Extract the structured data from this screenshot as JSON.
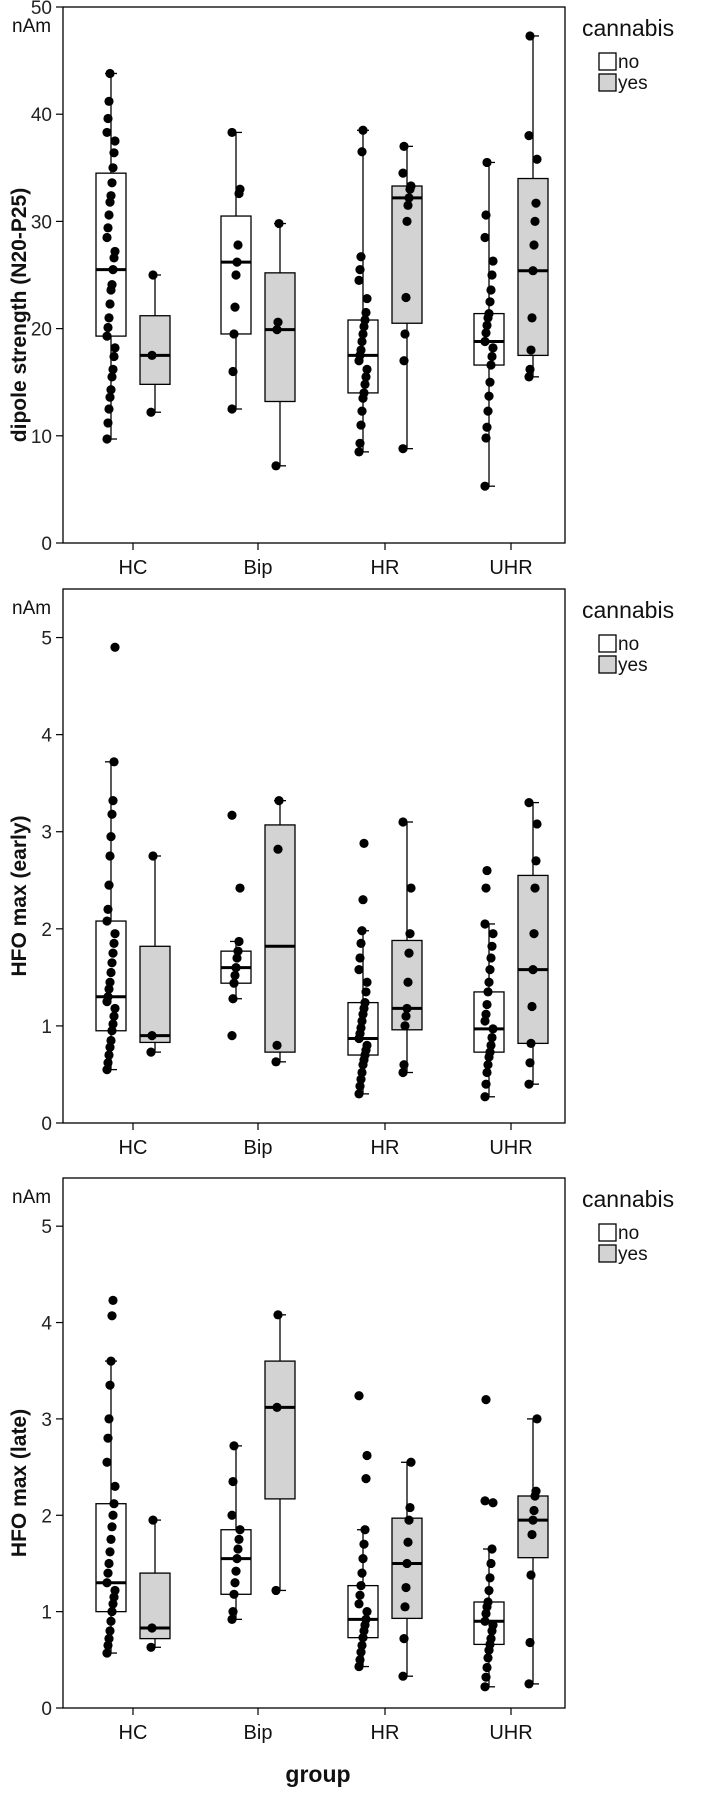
{
  "chart_data": [
    {
      "type": "box",
      "ylabel": "dipole strength (N20-P25)",
      "unit": "nAm",
      "xlabel": "",
      "ylim": [
        0,
        50
      ],
      "yticks": [
        0,
        10,
        20,
        30,
        40,
        50
      ],
      "categories": [
        "HC",
        "Bip",
        "HR",
        "UHR"
      ],
      "legend": {
        "title": "cannabis",
        "items": [
          "no",
          "yes"
        ],
        "placement": "right"
      },
      "colors": {
        "no": "#ffffff",
        "yes": "#d3d3d3"
      },
      "series": [
        {
          "name": "no",
          "boxes": [
            {
              "min": 9.7,
              "q1": 19.3,
              "median": 25.5,
              "q3": 34.5,
              "max": 43.8,
              "points": [
                9.7,
                11.2,
                12.5,
                13.6,
                14.3,
                15.5,
                16.2,
                17.4,
                18.2,
                19.3,
                20.1,
                21.0,
                22.3,
                23.6,
                24.1,
                25.5,
                26.6,
                27.2,
                28.5,
                29.4,
                30.6,
                31.8,
                32.4,
                33.6,
                35.0,
                36.4,
                37.5,
                38.3,
                39.6,
                41.2,
                43.8
              ]
            },
            {
              "min": 12.5,
              "q1": 19.5,
              "median": 26.2,
              "q3": 30.5,
              "max": 38.3,
              "points": [
                12.5,
                16.0,
                19.5,
                22.0,
                25.0,
                26.2,
                27.8,
                32.6,
                33.0,
                38.3
              ]
            },
            {
              "min": 8.5,
              "q1": 14.0,
              "median": 17.5,
              "q3": 20.8,
              "max": 38.5,
              "points": [
                8.5,
                9.3,
                11.0,
                12.3,
                13.5,
                14.0,
                14.8,
                15.5,
                16.2,
                17.0,
                17.5,
                18.0,
                18.8,
                19.5,
                20.2,
                20.8,
                21.5,
                22.8,
                24.5,
                25.5,
                26.7,
                36.5,
                38.5
              ]
            },
            {
              "min": 5.3,
              "q1": 16.6,
              "median": 18.8,
              "q3": 21.4,
              "max": 35.5,
              "points": [
                5.3,
                9.8,
                10.8,
                12.3,
                13.7,
                15.0,
                16.6,
                17.4,
                18.2,
                18.8,
                19.6,
                20.3,
                21.0,
                21.4,
                22.5,
                23.6,
                25.0,
                26.3,
                28.5,
                30.6,
                35.5
              ]
            }
          ]
        },
        {
          "name": "yes",
          "boxes": [
            {
              "min": 12.2,
              "q1": 14.8,
              "median": 17.5,
              "q3": 21.2,
              "max": 25.0,
              "points": [
                12.2,
                17.5,
                25.0
              ]
            },
            {
              "min": 7.2,
              "q1": 13.2,
              "median": 19.9,
              "q3": 25.2,
              "max": 29.8,
              "points": [
                7.2,
                19.9,
                20.6,
                29.8
              ]
            },
            {
              "min": 8.8,
              "q1": 20.5,
              "median": 32.2,
              "q3": 33.3,
              "max": 37.0,
              "points": [
                8.8,
                17.0,
                19.5,
                22.9,
                30.0,
                31.5,
                32.2,
                33.0,
                33.3,
                34.5,
                37.0
              ]
            },
            {
              "min": 15.5,
              "q1": 17.5,
              "median": 25.4,
              "q3": 34.0,
              "max": 47.3,
              "points": [
                15.5,
                16.2,
                18.0,
                21.0,
                25.4,
                27.8,
                30.0,
                31.7,
                35.8,
                38.0,
                47.3
              ]
            }
          ]
        }
      ]
    },
    {
      "type": "box",
      "ylabel": "HFO max (early)",
      "unit": "nAm",
      "xlabel": "",
      "ylim": [
        0,
        5.5
      ],
      "yticks": [
        0,
        1,
        2,
        3,
        4,
        5
      ],
      "categories": [
        "HC",
        "Bip",
        "HR",
        "UHR"
      ],
      "legend": {
        "title": "cannabis",
        "items": [
          "no",
          "yes"
        ],
        "placement": "right"
      },
      "colors": {
        "no": "#ffffff",
        "yes": "#d3d3d3"
      },
      "series": [
        {
          "name": "no",
          "boxes": [
            {
              "min": 0.55,
              "q1": 0.95,
              "median": 1.3,
              "q3": 2.08,
              "max": 3.72,
              "points": [
                0.55,
                0.62,
                0.7,
                0.78,
                0.85,
                0.95,
                1.02,
                1.1,
                1.18,
                1.25,
                1.3,
                1.38,
                1.45,
                1.55,
                1.65,
                1.75,
                1.85,
                1.95,
                2.08,
                2.2,
                2.45,
                2.75,
                2.95,
                3.18,
                3.32,
                3.72,
                4.9
              ]
            },
            {
              "min": 1.28,
              "q1": 1.44,
              "median": 1.6,
              "q3": 1.77,
              "max": 1.87,
              "points": [
                0.9,
                1.28,
                1.44,
                1.52,
                1.6,
                1.7,
                1.77,
                1.87,
                2.42,
                3.17
              ]
            },
            {
              "min": 0.3,
              "q1": 0.7,
              "median": 0.87,
              "q3": 1.24,
              "max": 1.98,
              "points": [
                0.3,
                0.38,
                0.45,
                0.52,
                0.6,
                0.65,
                0.7,
                0.75,
                0.8,
                0.87,
                0.92,
                0.98,
                1.05,
                1.12,
                1.18,
                1.24,
                1.35,
                1.45,
                1.58,
                1.7,
                1.85,
                1.98,
                2.3,
                2.88
              ]
            },
            {
              "min": 0.27,
              "q1": 0.73,
              "median": 0.97,
              "q3": 1.35,
              "max": 2.05,
              "points": [
                0.27,
                0.4,
                0.52,
                0.6,
                0.68,
                0.73,
                0.8,
                0.88,
                0.97,
                1.05,
                1.12,
                1.22,
                1.35,
                1.45,
                1.58,
                1.7,
                1.82,
                1.95,
                2.05,
                2.42,
                2.6
              ]
            }
          ]
        },
        {
          "name": "yes",
          "boxes": [
            {
              "min": 0.73,
              "q1": 0.83,
              "median": 0.9,
              "q3": 1.82,
              "max": 2.75,
              "points": [
                0.73,
                0.9,
                2.75
              ]
            },
            {
              "min": 0.63,
              "q1": 0.73,
              "median": 1.82,
              "q3": 3.07,
              "max": 3.32,
              "points": [
                0.63,
                0.8,
                2.82,
                3.32
              ]
            },
            {
              "min": 0.52,
              "q1": 0.96,
              "median": 1.18,
              "q3": 1.88,
              "max": 3.1,
              "points": [
                0.52,
                0.6,
                1.0,
                1.1,
                1.18,
                1.45,
                1.75,
                1.95,
                2.42,
                3.1
              ]
            },
            {
              "min": 0.4,
              "q1": 0.82,
              "median": 1.58,
              "q3": 2.55,
              "max": 3.3,
              "points": [
                0.4,
                0.62,
                0.82,
                1.2,
                1.58,
                1.95,
                2.42,
                2.7,
                3.08,
                3.3
              ]
            }
          ]
        }
      ]
    },
    {
      "type": "box",
      "ylabel": "HFO max (late)",
      "unit": "nAm",
      "xlabel": "group",
      "ylim": [
        0,
        5.5
      ],
      "yticks": [
        0,
        1,
        2,
        3,
        4,
        5
      ],
      "categories": [
        "HC",
        "Bip",
        "HR",
        "UHR"
      ],
      "legend": {
        "title": "cannabis",
        "items": [
          "no",
          "yes"
        ],
        "placement": "right"
      },
      "colors": {
        "no": "#ffffff",
        "yes": "#d3d3d3"
      },
      "series": [
        {
          "name": "no",
          "boxes": [
            {
              "min": 0.57,
              "q1": 1.0,
              "median": 1.3,
              "q3": 2.12,
              "max": 3.6,
              "points": [
                0.57,
                0.65,
                0.72,
                0.8,
                0.9,
                1.0,
                1.08,
                1.15,
                1.22,
                1.3,
                1.4,
                1.5,
                1.62,
                1.75,
                1.88,
                2.0,
                2.12,
                2.3,
                2.55,
                2.8,
                3.0,
                3.35,
                3.6,
                4.07,
                4.23
              ]
            },
            {
              "min": 0.92,
              "q1": 1.18,
              "median": 1.55,
              "q3": 1.85,
              "max": 2.72,
              "points": [
                0.92,
                1.0,
                1.18,
                1.3,
                1.42,
                1.55,
                1.65,
                1.75,
                1.85,
                2.0,
                2.35,
                2.72
              ]
            },
            {
              "min": 0.43,
              "q1": 0.73,
              "median": 0.92,
              "q3": 1.27,
              "max": 1.85,
              "points": [
                0.43,
                0.5,
                0.58,
                0.65,
                0.73,
                0.8,
                0.86,
                0.92,
                1.0,
                1.08,
                1.17,
                1.27,
                1.4,
                1.55,
                1.7,
                1.85,
                2.38,
                2.62,
                3.24
              ]
            },
            {
              "min": 0.22,
              "q1": 0.66,
              "median": 0.9,
              "q3": 1.1,
              "max": 1.65,
              "points": [
                0.22,
                0.32,
                0.42,
                0.52,
                0.6,
                0.66,
                0.72,
                0.8,
                0.86,
                0.9,
                0.98,
                1.05,
                1.1,
                1.22,
                1.35,
                1.5,
                1.65,
                2.13,
                2.15,
                3.2
              ]
            }
          ]
        },
        {
          "name": "yes",
          "boxes": [
            {
              "min": 0.63,
              "q1": 0.72,
              "median": 0.83,
              "q3": 1.4,
              "max": 1.95,
              "points": [
                0.63,
                0.83,
                1.95
              ]
            },
            {
              "min": 1.22,
              "q1": 2.17,
              "median": 3.12,
              "q3": 3.6,
              "max": 4.08,
              "points": [
                1.22,
                3.12,
                4.08
              ]
            },
            {
              "min": 0.33,
              "q1": 0.93,
              "median": 1.5,
              "q3": 1.97,
              "max": 2.55,
              "points": [
                0.33,
                0.72,
                1.05,
                1.25,
                1.5,
                1.72,
                1.95,
                2.08,
                2.55
              ]
            },
            {
              "min": 0.25,
              "q1": 1.56,
              "median": 1.95,
              "q3": 2.2,
              "max": 3.0,
              "points": [
                0.25,
                0.68,
                1.38,
                1.8,
                1.95,
                2.05,
                2.2,
                2.25,
                3.0
              ]
            }
          ]
        }
      ]
    }
  ]
}
